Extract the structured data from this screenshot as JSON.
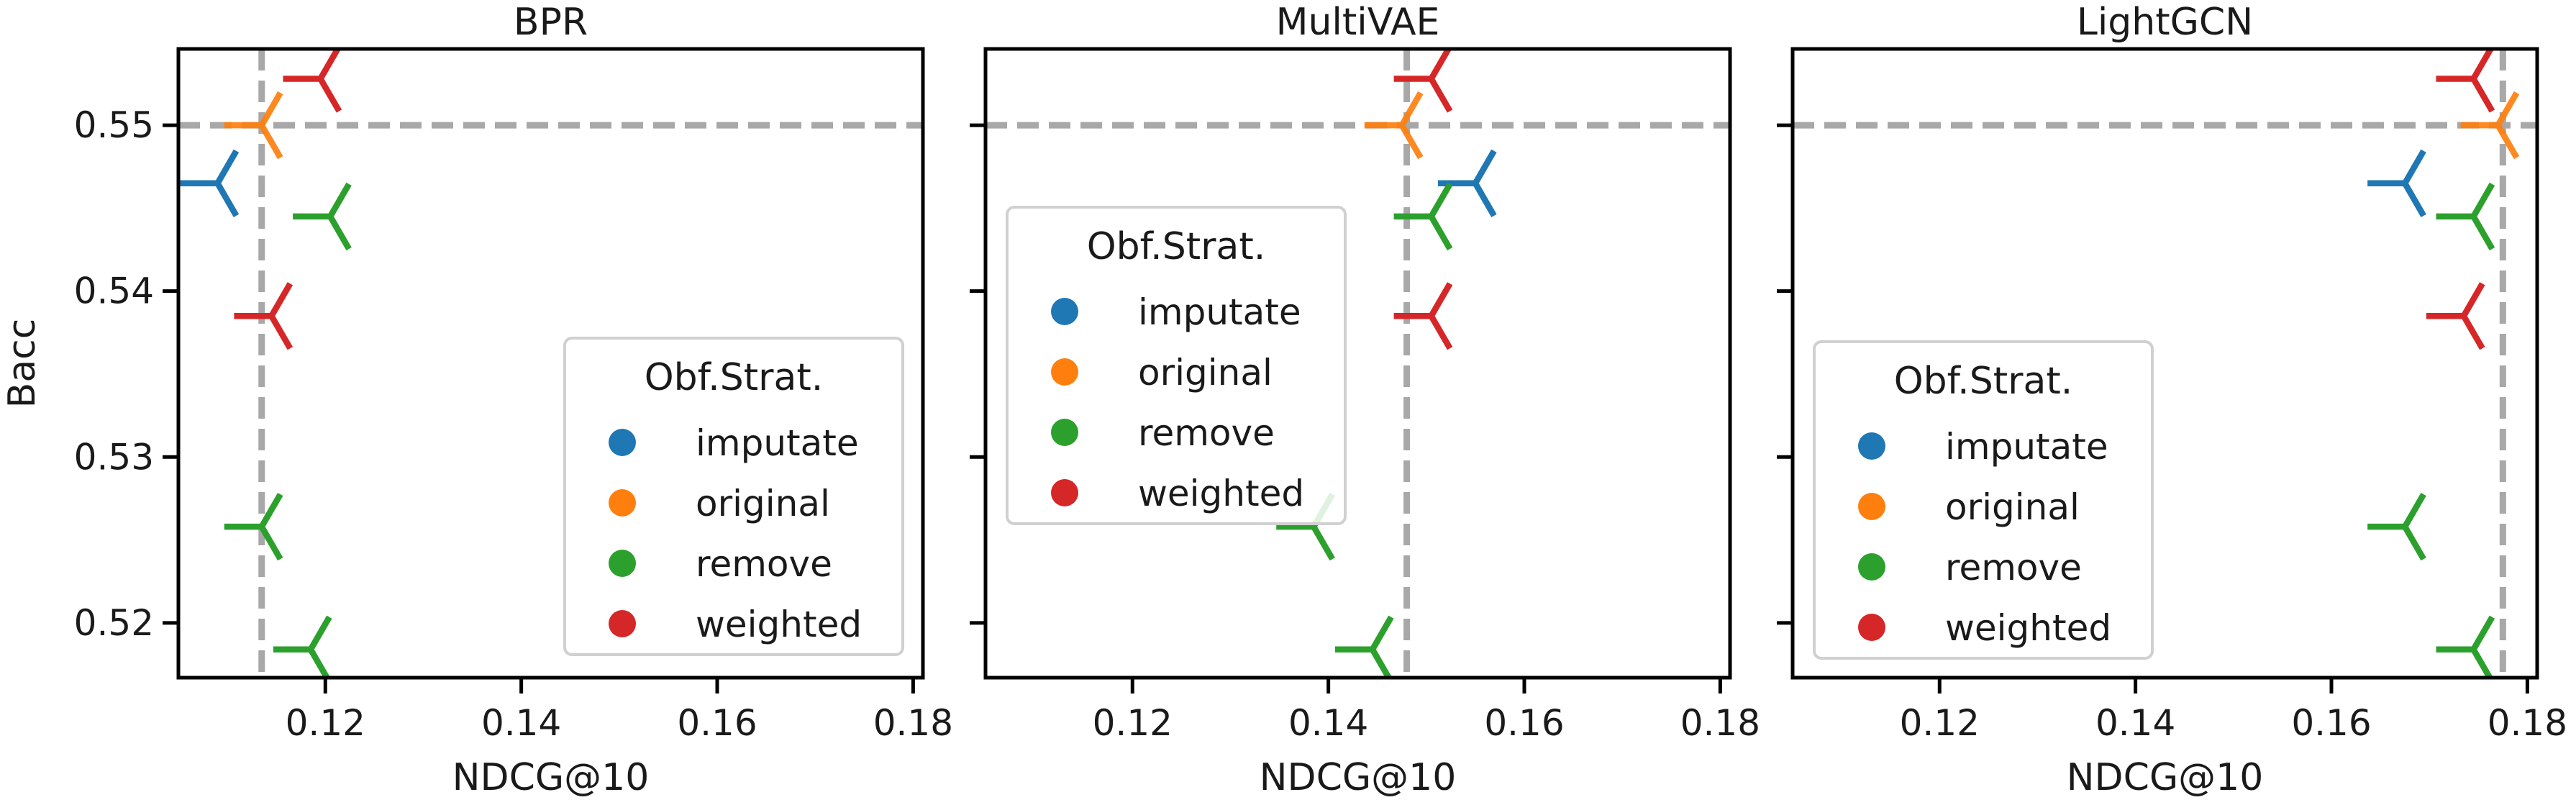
{
  "chart_data": [
    {
      "type": "scatter",
      "title": "BPR",
      "xlabel": "NDCG@10",
      "ylabel": "Bacc",
      "xlim": [
        0.105,
        0.181
      ],
      "ylim": [
        0.5167,
        0.5546
      ],
      "xticks": [
        "0.12",
        "0.14",
        "0.16",
        "0.18"
      ],
      "yticks": [
        "0.52",
        "0.53",
        "0.54",
        "0.55"
      ],
      "reference": {
        "x": 0.1135,
        "y": 0.55
      },
      "legend": {
        "title": "Obf.Strat.",
        "placement": "lower right",
        "entries": [
          "imputate",
          "original",
          "remove",
          "weighted"
        ]
      },
      "series": [
        {
          "name": "imputate",
          "color": "#1f77b4",
          "points": [
            [
              0.109,
              0.5465
            ]
          ]
        },
        {
          "name": "original",
          "color": "#ff7f0e",
          "points": [
            [
              0.1135,
              0.55
            ]
          ]
        },
        {
          "name": "remove",
          "color": "#2ca02c",
          "points": [
            [
              0.1135,
              0.5258
            ],
            [
              0.1185,
              0.5184
            ],
            [
              0.1205,
              0.5445
            ]
          ]
        },
        {
          "name": "weighted",
          "color": "#d62728",
          "points": [
            [
              0.1145,
              0.5385
            ],
            [
              0.1195,
              0.5528
            ]
          ]
        }
      ]
    },
    {
      "type": "scatter",
      "title": "MultiVAE",
      "xlabel": "NDCG@10",
      "ylabel": "",
      "xlim": [
        0.105,
        0.181
      ],
      "ylim": [
        0.5167,
        0.5546
      ],
      "xticks": [
        "0.12",
        "0.14",
        "0.16",
        "0.18"
      ],
      "yticks": [],
      "reference": {
        "x": 0.148,
        "y": 0.55
      },
      "legend": {
        "title": "Obf.Strat.",
        "placement": "center left",
        "entries": [
          "imputate",
          "original",
          "remove",
          "weighted"
        ]
      },
      "series": [
        {
          "name": "imputate",
          "color": "#1f77b4",
          "points": [
            [
              0.155,
              0.5465
            ]
          ]
        },
        {
          "name": "original",
          "color": "#ff7f0e",
          "points": [
            [
              0.1475,
              0.55
            ]
          ]
        },
        {
          "name": "remove",
          "color": "#2ca02c",
          "points": [
            [
              0.1385,
              0.5258
            ],
            [
              0.1445,
              0.5184
            ],
            [
              0.1505,
              0.5445
            ]
          ]
        },
        {
          "name": "weighted",
          "color": "#d62728",
          "points": [
            [
              0.1505,
              0.5385
            ],
            [
              0.1505,
              0.5528
            ]
          ]
        }
      ]
    },
    {
      "type": "scatter",
      "title": "LightGCN",
      "xlabel": "NDCG@10",
      "ylabel": "",
      "xlim": [
        0.105,
        0.181
      ],
      "ylim": [
        0.5167,
        0.5546
      ],
      "xticks": [
        "0.12",
        "0.14",
        "0.16",
        "0.18"
      ],
      "yticks": [],
      "reference": {
        "x": 0.1775,
        "y": 0.55
      },
      "legend": {
        "title": "Obf.Strat.",
        "placement": "lower left",
        "entries": [
          "imputate",
          "original",
          "remove",
          "weighted"
        ]
      },
      "series": [
        {
          "name": "imputate",
          "color": "#1f77b4",
          "points": [
            [
              0.1675,
              0.5465
            ]
          ]
        },
        {
          "name": "original",
          "color": "#ff7f0e",
          "points": [
            [
              0.177,
              0.55
            ]
          ]
        },
        {
          "name": "remove",
          "color": "#2ca02c",
          "points": [
            [
              0.1675,
              0.5258
            ],
            [
              0.1745,
              0.5184
            ],
            [
              0.1745,
              0.5445
            ]
          ]
        },
        {
          "name": "weighted",
          "color": "#d62728",
          "points": [
            [
              0.1735,
              0.5385
            ],
            [
              0.1745,
              0.5528
            ]
          ]
        }
      ]
    }
  ]
}
